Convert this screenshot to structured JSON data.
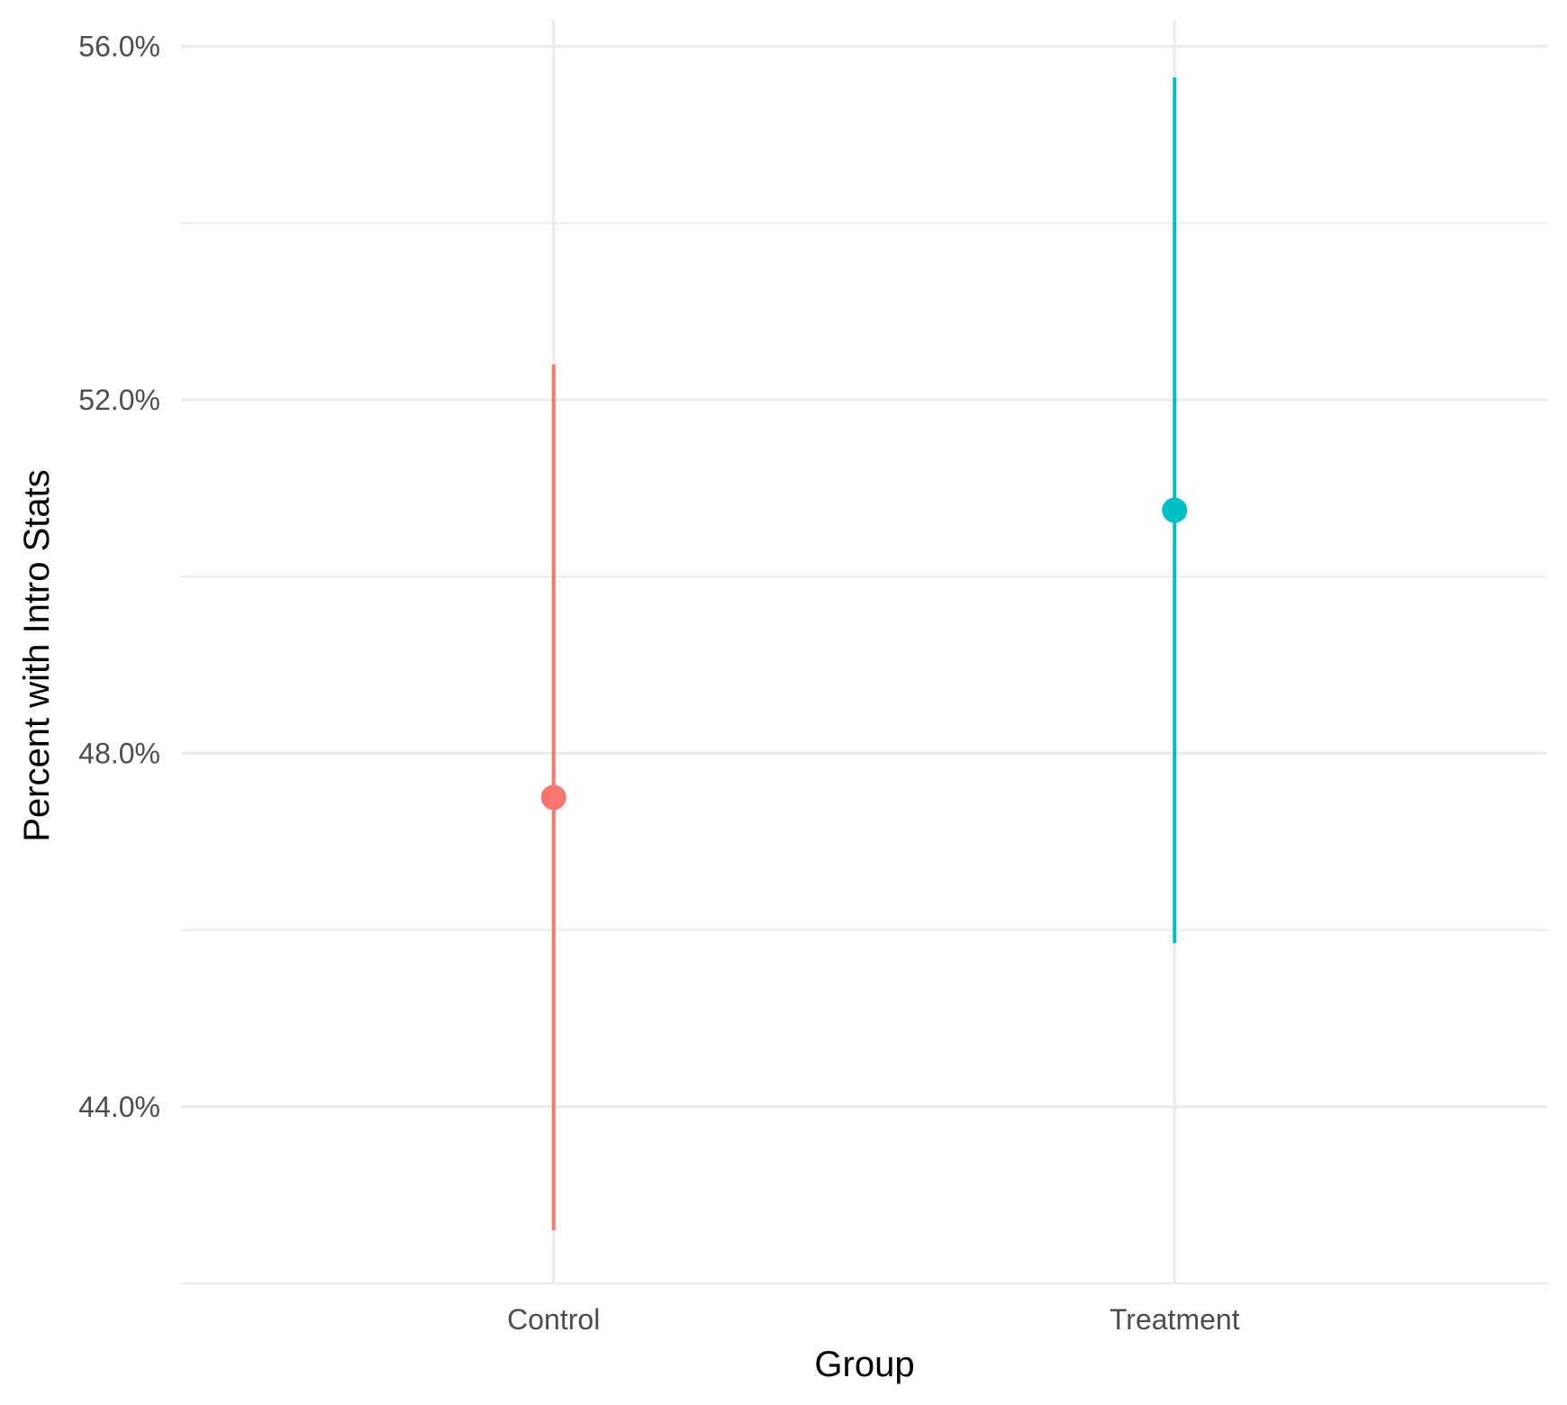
{
  "chart_data": {
    "type": "errorbar",
    "categories": [
      "Control",
      "Treatment"
    ],
    "series": [
      {
        "category": "Control",
        "estimate": 47.5,
        "lower": 42.6,
        "upper": 52.4,
        "color": "#F8766D"
      },
      {
        "category": "Treatment",
        "estimate": 50.75,
        "lower": 45.85,
        "upper": 55.65,
        "color": "#00BFC4"
      }
    ],
    "xlabel": "Group",
    "ylabel": "Percent with Intro Stats",
    "ylim": [
      42.0,
      56.3
    ],
    "yticks": [
      44.0,
      48.0,
      52.0,
      56.0
    ],
    "ytick_labels": [
      "44.0%",
      "48.0%",
      "52.0%",
      "56.0%"
    ],
    "y_minor_ticks": [
      42.0,
      46.0,
      50.0,
      54.0
    ],
    "grid": true,
    "legend": "none"
  }
}
